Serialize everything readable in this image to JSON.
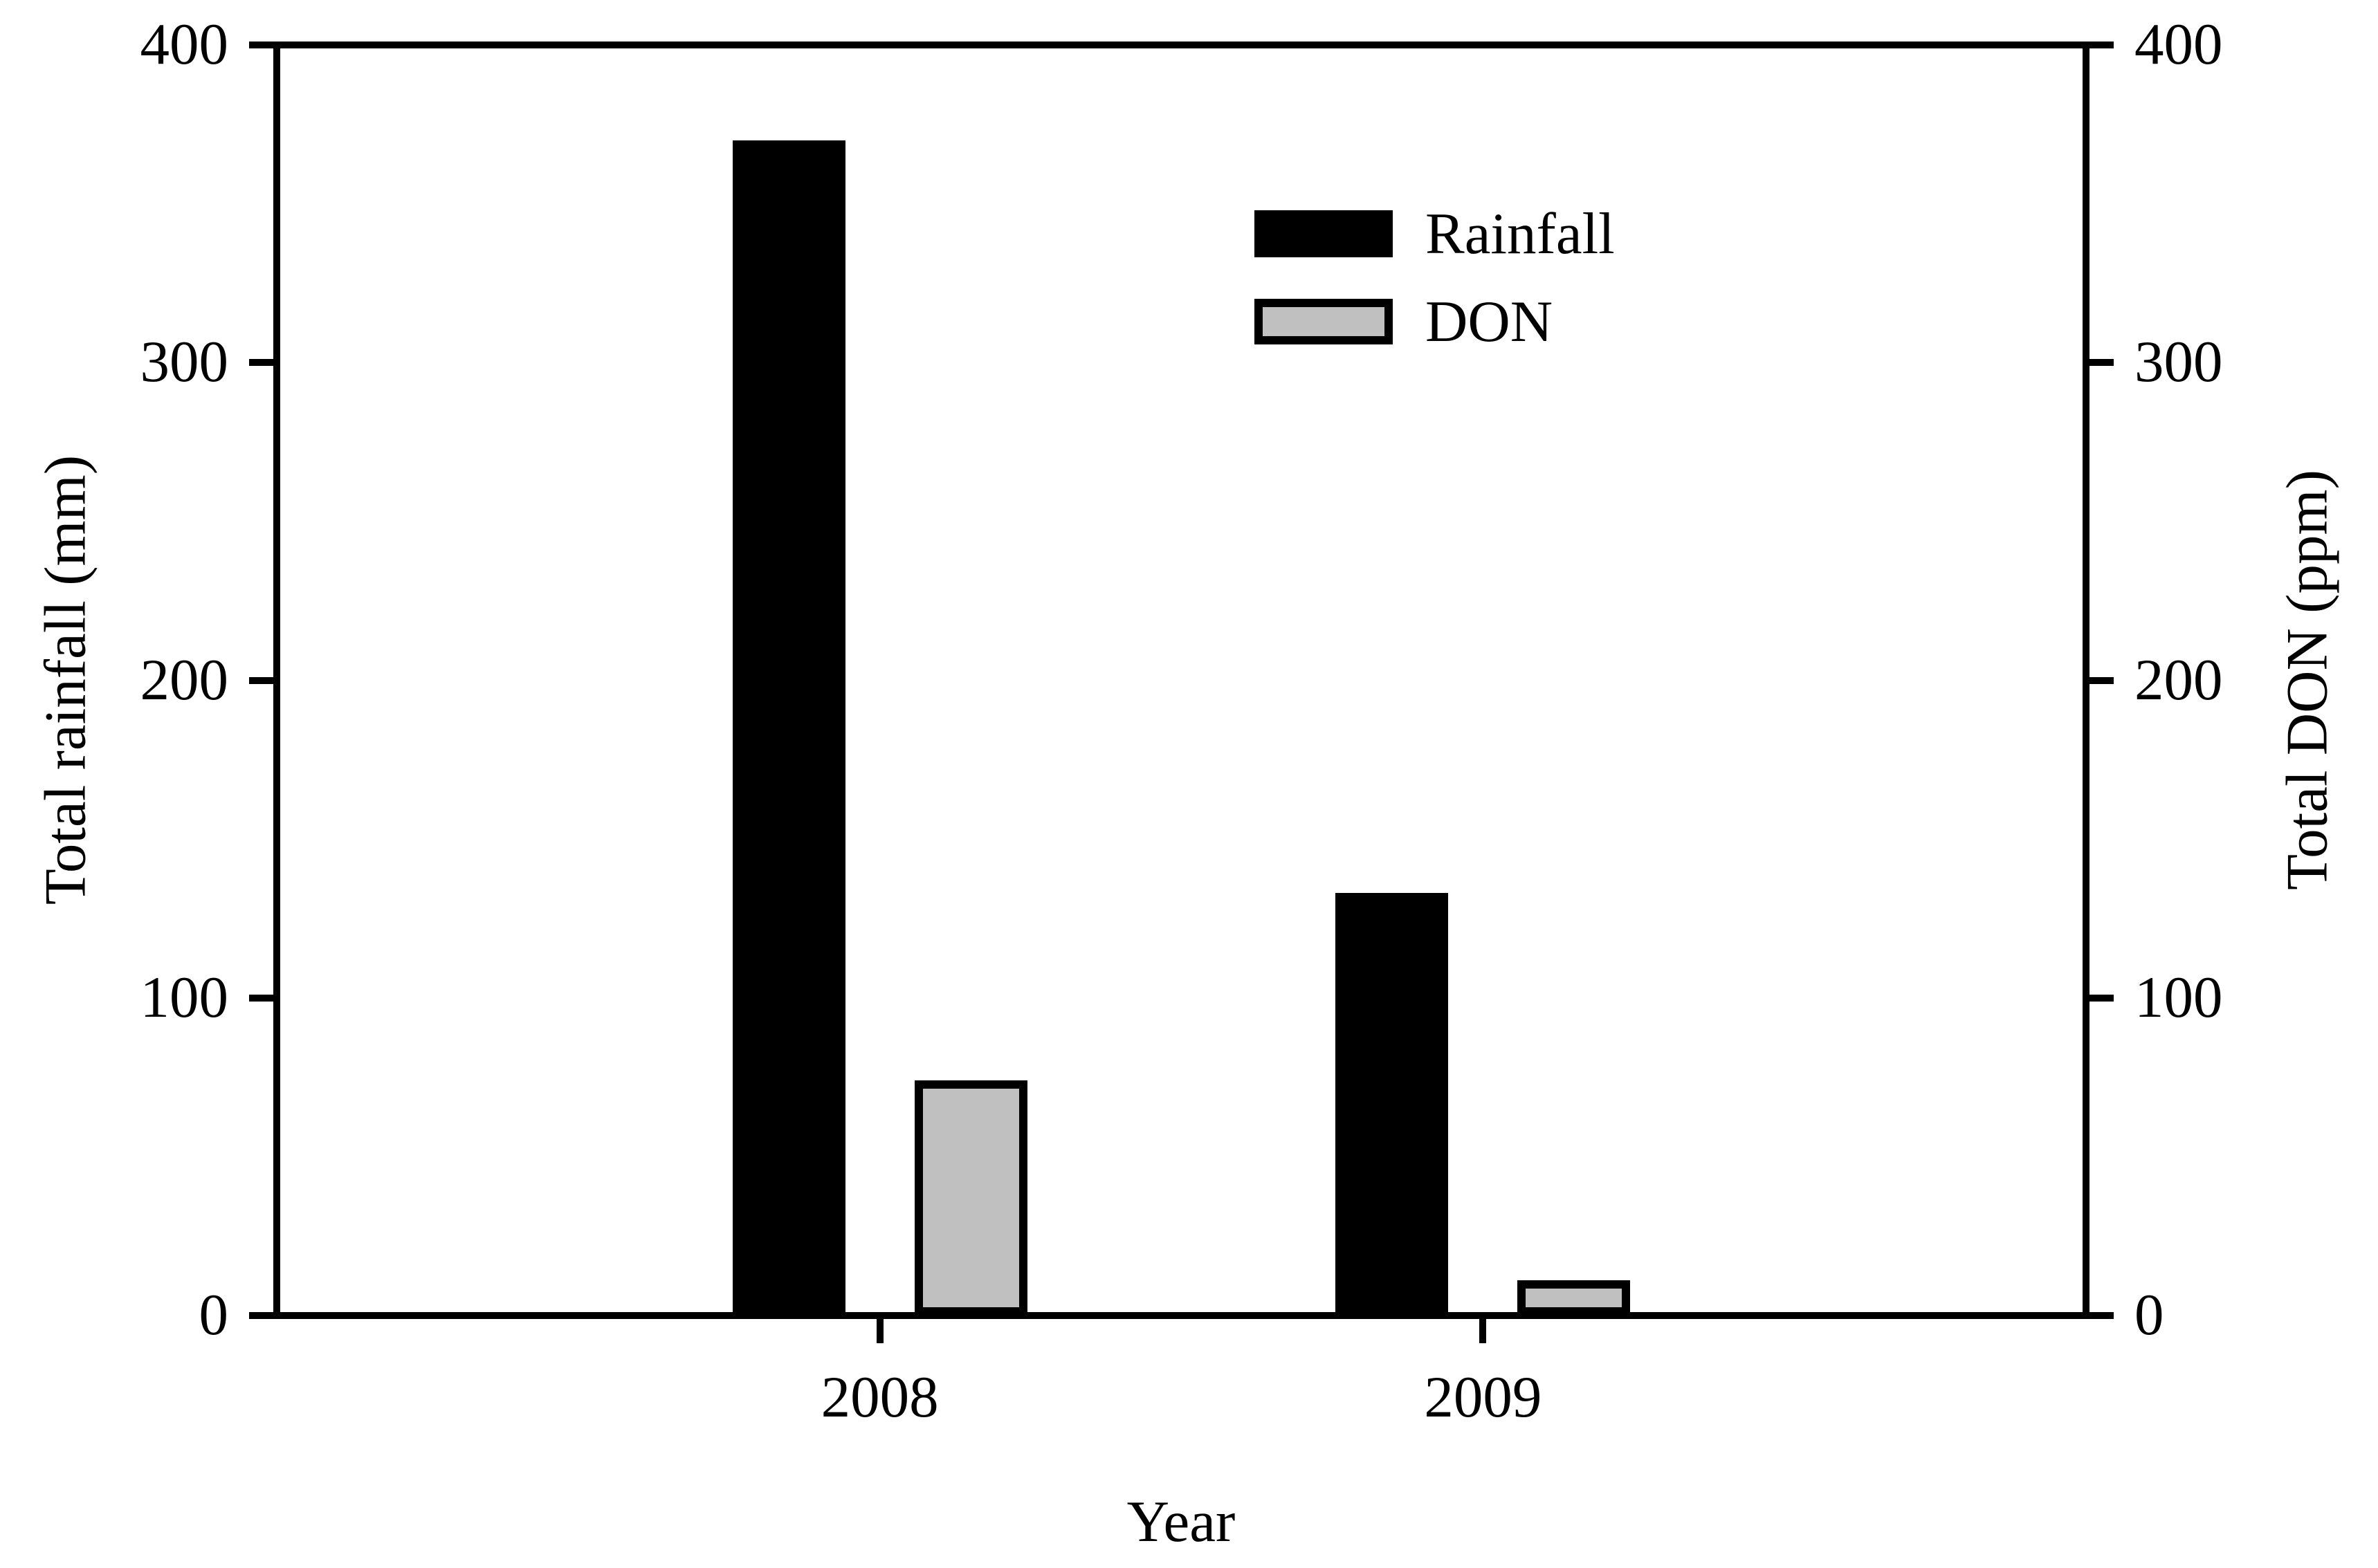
{
  "chart_data": {
    "type": "bar",
    "categories": [
      "2008",
      "2009"
    ],
    "series": [
      {
        "name": "Rainfall",
        "axis": "left",
        "color": "#000000",
        "values": [
          370,
          133
        ]
      },
      {
        "name": "DON",
        "axis": "right",
        "color": "#c0c0c0",
        "values": [
          74,
          11
        ]
      }
    ],
    "xlabel": "Year",
    "ylabel_left": "Total rainfall (mm)",
    "ylabel_right": "Total DON (ppm)",
    "ylim": [
      0,
      400
    ],
    "yticks": [
      0,
      100,
      200,
      300,
      400
    ],
    "grid": false,
    "legend_position": "upper center-right, inside plot",
    "bar_edge_color": "#000000",
    "background_color": "#ffffff",
    "text_color": "#000000"
  }
}
